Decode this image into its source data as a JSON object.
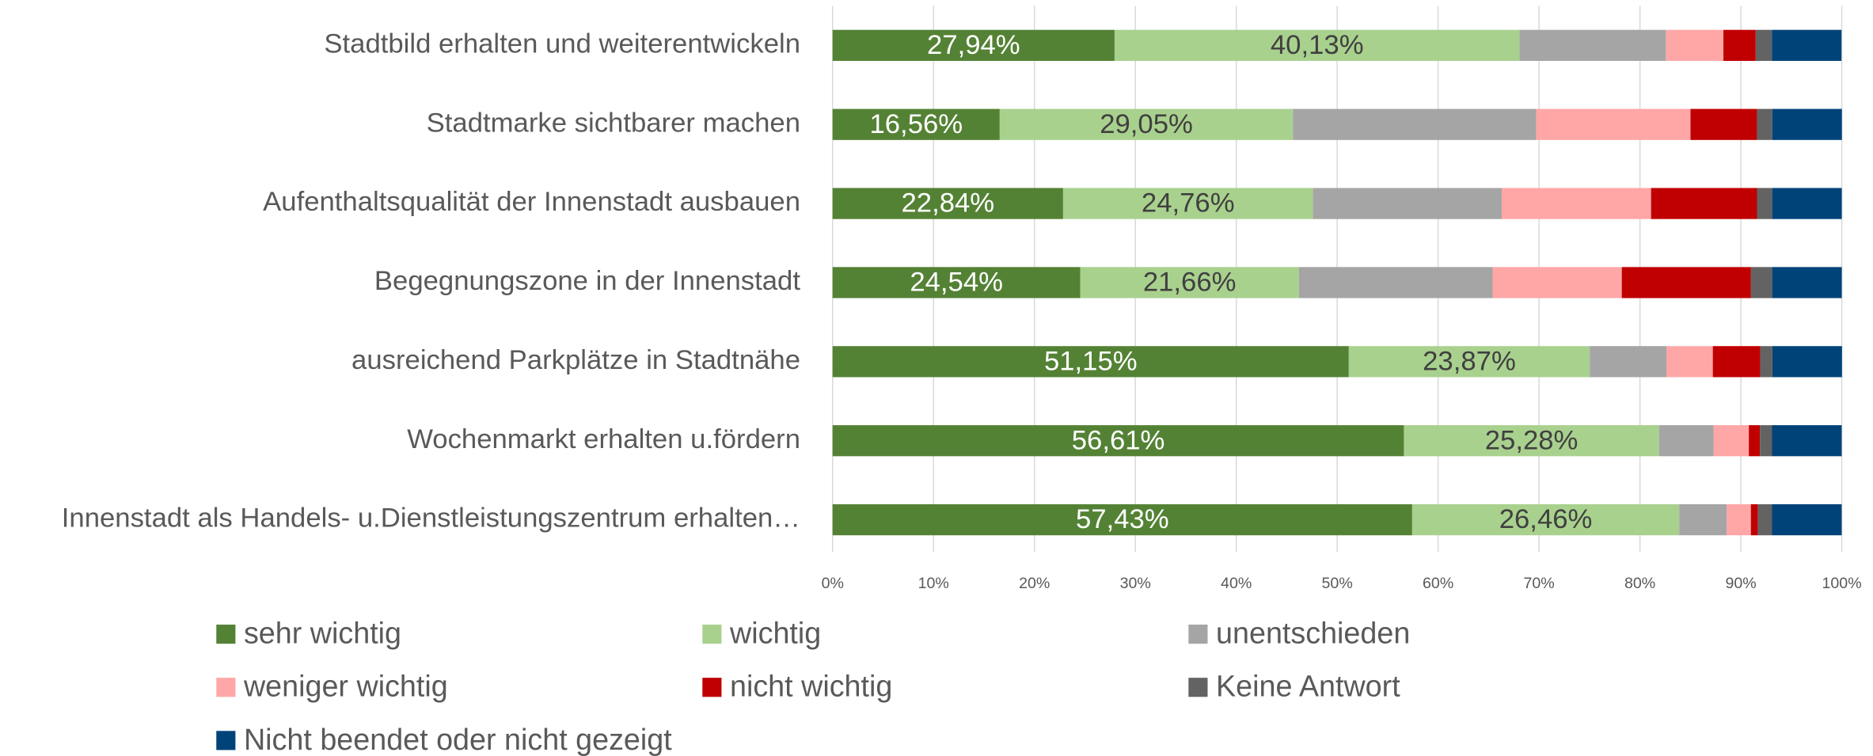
{
  "chart_data": {
    "type": "stacked_barh",
    "categories": [
      "Stadtbild erhalten und weiterentwickeln",
      "Stadtmarke sichtbarer machen",
      "Aufenthaltsqualität der Innenstadt ausbauen",
      "Begegnungszone in der Innenstadt",
      "ausreichend Parkplätze in Stadtnähe",
      "Wochenmarkt erhalten u.fördern",
      "Innenstadt als Handels- u.Dienstleistungszentrum erhalten…"
    ],
    "series": [
      {
        "name": "sehr wichtig",
        "color": "#548235",
        "values": [
          27.94,
          16.56,
          22.84,
          24.54,
          51.15,
          56.61,
          57.43
        ],
        "value_labels": [
          "27,94%",
          "16,56%",
          "22,84%",
          "24,54%",
          "51,15%",
          "56,61%",
          "57,43%"
        ]
      },
      {
        "name": "wichtig",
        "color": "#a9d18e",
        "values": [
          40.13,
          29.05,
          24.76,
          21.66,
          23.87,
          25.28,
          26.46
        ],
        "value_labels": [
          "40,13%",
          "29,05%",
          "24,76%",
          "21,66%",
          "23,87%",
          "25,28%",
          "26,46%"
        ]
      },
      {
        "name": "unentschieden",
        "color": "#a5a5a5",
        "values": [
          14.5,
          24.1,
          18.7,
          19.2,
          7.6,
          5.4,
          4.7
        ]
      },
      {
        "name": "weniger wichtig",
        "color": "#ffa7a7",
        "values": [
          5.7,
          15.3,
          14.8,
          12.8,
          4.6,
          3.5,
          2.4
        ]
      },
      {
        "name": "nicht wichtig",
        "color": "#c00000",
        "values": [
          3.2,
          6.6,
          10.5,
          12.8,
          4.7,
          1.1,
          0.7
        ]
      },
      {
        "name": "Keine Antwort",
        "color": "#636363",
        "values": [
          1.6,
          1.5,
          1.5,
          2.1,
          1.2,
          1.2,
          1.4
        ]
      },
      {
        "name": "Nicht beendet oder nicht gezeigt",
        "color": "#004379",
        "values": [
          6.9,
          6.9,
          6.9,
          6.9,
          6.9,
          6.9,
          6.9
        ]
      }
    ],
    "xlim": [
      0,
      100
    ],
    "xticks": [
      {
        "value": 0,
        "label": "0%"
      },
      {
        "value": 10,
        "label": "10%"
      },
      {
        "value": 20,
        "label": "20%"
      },
      {
        "value": 30,
        "label": "30%"
      },
      {
        "value": 40,
        "label": "40%"
      },
      {
        "value": 50,
        "label": "50%"
      },
      {
        "value": 60,
        "label": "60%"
      },
      {
        "value": 70,
        "label": "70%"
      },
      {
        "value": 80,
        "label": "80%"
      },
      {
        "value": 90,
        "label": "90%"
      },
      {
        "value": 100,
        "label": "100%"
      }
    ],
    "grid": true,
    "legend": "bottom"
  }
}
